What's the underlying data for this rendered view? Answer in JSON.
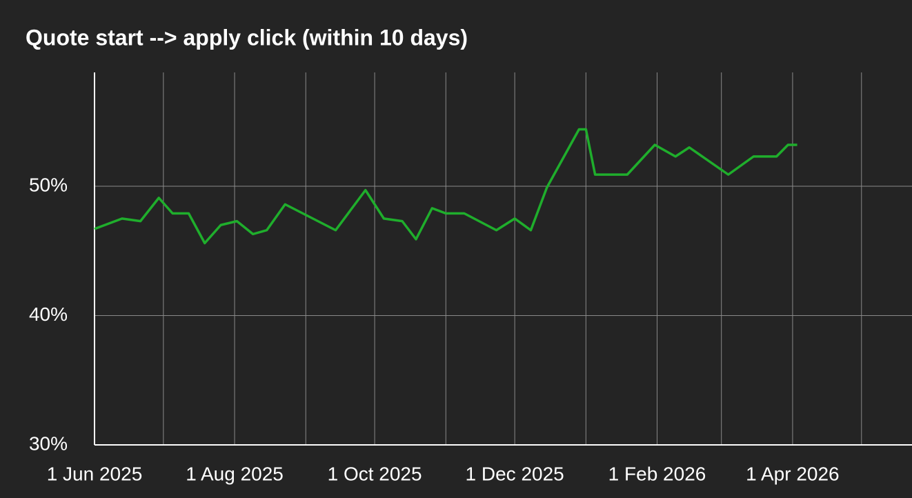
{
  "chart_data": {
    "type": "line",
    "title": "Quote start --> apply click (within 10 days)",
    "x": [
      "2025-06-01",
      "2025-06-13",
      "2025-06-21",
      "2025-06-29",
      "2025-07-05",
      "2025-07-12",
      "2025-07-19",
      "2025-07-26",
      "2025-08-02",
      "2025-08-09",
      "2025-08-15",
      "2025-08-23",
      "2025-09-14",
      "2025-09-27",
      "2025-10-05",
      "2025-10-13",
      "2025-10-19",
      "2025-10-26",
      "2025-11-01",
      "2025-11-09",
      "2025-11-23",
      "2025-12-01",
      "2025-12-08",
      "2025-12-15",
      "2025-12-29",
      "2026-01-01",
      "2026-01-05",
      "2026-01-19",
      "2026-01-31",
      "2026-02-09",
      "2026-02-15",
      "2026-03-04",
      "2026-03-15",
      "2026-03-25",
      "2026-03-30",
      "2026-04-03"
    ],
    "series": [
      {
        "color": "#1fae2c",
        "values": [
          46.7,
          47.5,
          47.3,
          49.1,
          47.9,
          47.9,
          45.6,
          47.0,
          47.3,
          46.3,
          46.6,
          48.6,
          46.6,
          49.7,
          47.5,
          47.3,
          45.9,
          48.3,
          47.9,
          47.9,
          46.6,
          47.5,
          46.6,
          49.9,
          54.4,
          54.4,
          50.9,
          50.9,
          53.2,
          52.3,
          53.0,
          50.9,
          52.3,
          52.3,
          53.2,
          53.2
        ]
      }
    ],
    "xlim": [
      "2025-06-01",
      "2026-05-23"
    ],
    "xticks": [
      {
        "value": "2025-06-01",
        "label": "1 Jun 2025"
      },
      {
        "value": "2025-08-01",
        "label": "1 Aug 2025"
      },
      {
        "value": "2025-10-01",
        "label": "1 Oct 2025"
      },
      {
        "value": "2025-12-01",
        "label": "1 Dec 2025"
      },
      {
        "value": "2026-02-01",
        "label": "1 Feb 2026"
      },
      {
        "value": "2026-04-01",
        "label": "1 Apr 2026"
      }
    ],
    "xminor": [
      "2025-07-01",
      "2025-09-01",
      "2025-11-01",
      "2026-01-01",
      "2026-03-01",
      "2026-05-01"
    ],
    "ylim": [
      30,
      58.8
    ],
    "yticks": [
      {
        "value": 30,
        "label": "30%"
      },
      {
        "value": 40,
        "label": "40%"
      },
      {
        "value": 50,
        "label": "50%"
      }
    ],
    "grid": true
  }
}
